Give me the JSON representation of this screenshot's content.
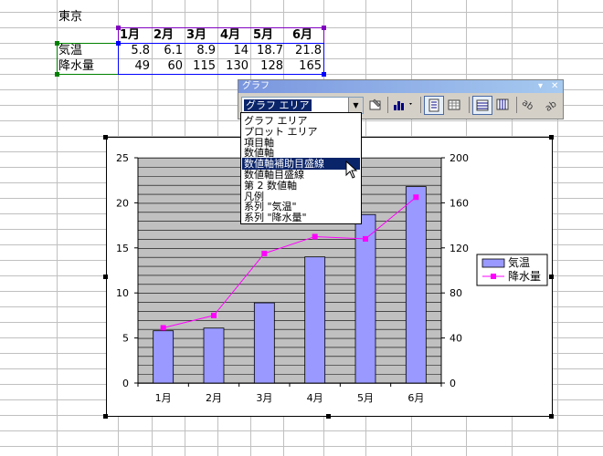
{
  "sheet": {
    "title": "東京",
    "table": {
      "headers": [
        "1月",
        "2月",
        "3月",
        "4月",
        "5月",
        "6月"
      ],
      "rows": [
        {
          "label": "気温",
          "values": [
            "5.8",
            "6.1",
            "8.9",
            "14",
            "18.7",
            "21.8"
          ]
        },
        {
          "label": "降水量",
          "values": [
            "49",
            "60",
            "115",
            "130",
            "128",
            "165"
          ]
        }
      ]
    }
  },
  "toolbar": {
    "title": "グラフ",
    "selected_object": "グラフ エリア",
    "minimize_icon": "dropdown-arrow",
    "close_icon": "close-x",
    "buttons": [
      "format-selected-object",
      "chart-type",
      "legend",
      "data-table",
      "by-row",
      "by-column",
      "angle-text-downward",
      "angle-text-upward"
    ],
    "dropdown_items": [
      "グラフ エリア",
      "プロット エリア",
      "項目軸",
      "数値軸",
      "数値軸補助目盛線",
      "数値軸目盛線",
      "第 2 数値軸",
      "凡例",
      "系列 \"気温\"",
      "系列 \"降水量\""
    ],
    "highlighted_item": "数値軸補助目盛線"
  },
  "chart_data": {
    "type": "bar",
    "categories": [
      "1月",
      "2月",
      "3月",
      "4月",
      "5月",
      "6月"
    ],
    "series": [
      {
        "name": "気温",
        "type": "bar",
        "axis": "left",
        "values": [
          5.8,
          6.1,
          8.9,
          14,
          18.7,
          21.8
        ],
        "color": "#9999ff"
      },
      {
        "name": "降水量",
        "type": "line",
        "axis": "right",
        "values": [
          49,
          60,
          115,
          130,
          128,
          165
        ],
        "color": "#ff00ff"
      }
    ],
    "y_left": {
      "ticks": [
        "0",
        "5",
        "10",
        "15",
        "20",
        "25"
      ],
      "min": 0,
      "max": 25
    },
    "y_right": {
      "ticks": [
        "0",
        "40",
        "80",
        "120",
        "160",
        "200"
      ],
      "min": 0,
      "max": 200
    },
    "plot_background": "#c0c0c0",
    "grid": "minor horizontal",
    "legend_position": "right"
  }
}
